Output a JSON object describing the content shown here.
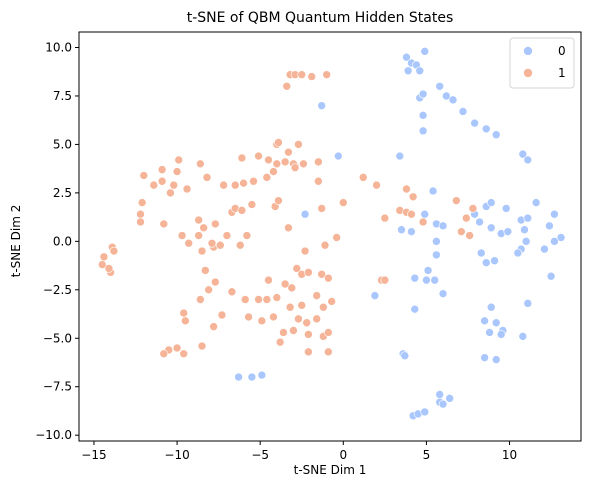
{
  "chart_data": {
    "type": "scatter",
    "title": "t-SNE of QBM Quantum Hidden States",
    "xlabel": "t-SNE Dim 1",
    "ylabel": "t-SNE Dim 2",
    "xlim": [
      -15.9,
      14.3
    ],
    "ylim": [
      -10.3,
      10.8
    ],
    "xticks": [
      -15,
      -10,
      -5,
      0,
      5,
      10
    ],
    "yticks": [
      -10.0,
      -7.5,
      -5.0,
      -2.5,
      0.0,
      2.5,
      5.0,
      7.5,
      10.0
    ],
    "ytick_labels": [
      "−10.0",
      "−7.5",
      "−5.0",
      "−2.5",
      "0.0",
      "2.5",
      "5.0",
      "7.5",
      "10.0"
    ],
    "xtick_labels": [
      "−15",
      "−10",
      "−5",
      "0",
      "5",
      "10"
    ],
    "grid": false,
    "legend_position": "top-right",
    "series": [
      {
        "name": "0",
        "color": "#aac7fd",
        "points": [
          [
            3.8,
            9.5
          ],
          [
            4.9,
            9.8
          ],
          [
            4.1,
            9.2
          ],
          [
            4.4,
            9.1
          ],
          [
            4.6,
            8.8
          ],
          [
            3.9,
            8.8
          ],
          [
            5.8,
            8.0
          ],
          [
            4.6,
            7.4
          ],
          [
            4.8,
            7.6
          ],
          [
            6.2,
            7.5
          ],
          [
            6.6,
            7.3
          ],
          [
            7.2,
            6.7
          ],
          [
            4.8,
            6.5
          ],
          [
            4.8,
            5.7
          ],
          [
            7.9,
            6.1
          ],
          [
            8.6,
            5.8
          ],
          [
            9.2,
            5.5
          ],
          [
            -1.3,
            7.0
          ],
          [
            -0.3,
            4.4
          ],
          [
            3.4,
            4.4
          ],
          [
            10.8,
            4.5
          ],
          [
            11.1,
            4.2
          ],
          [
            5.4,
            2.6
          ],
          [
            -2.3,
            1.4
          ],
          [
            8.6,
            1.8
          ],
          [
            8.9,
            2.0
          ],
          [
            3.5,
            0.6
          ],
          [
            4.9,
            1.4
          ],
          [
            5.6,
            0.9
          ],
          [
            6.0,
            0.8
          ],
          [
            5.6,
            0.0
          ],
          [
            7.9,
            1.4
          ],
          [
            8.2,
            1.0
          ],
          [
            8.9,
            0.7
          ],
          [
            9.5,
            0.4
          ],
          [
            9.8,
            1.7
          ],
          [
            9.9,
            0.5
          ],
          [
            10.7,
            1.1
          ],
          [
            10.9,
            0.6
          ],
          [
            11.1,
            1.2
          ],
          [
            11.6,
            2.0
          ],
          [
            12.7,
            1.4
          ],
          [
            12.4,
            0.8
          ],
          [
            13.1,
            0.2
          ],
          [
            12.7,
            0.0
          ],
          [
            11.0,
            0.0
          ],
          [
            10.7,
            -0.4
          ],
          [
            10.5,
            -0.6
          ],
          [
            12.1,
            -0.4
          ],
          [
            12.5,
            -1.8
          ],
          [
            8.3,
            -0.6
          ],
          [
            8.6,
            -1.1
          ],
          [
            9.1,
            -1.0
          ],
          [
            4.1,
            0.5
          ],
          [
            5.1,
            -1.5
          ],
          [
            5.0,
            -2.0
          ],
          [
            5.5,
            -2.0
          ],
          [
            5.6,
            -0.7
          ],
          [
            6.0,
            -2.7
          ],
          [
            4.3,
            -1.9
          ],
          [
            1.9,
            -2.8
          ],
          [
            4.3,
            -3.5
          ],
          [
            8.9,
            -3.4
          ],
          [
            8.5,
            -4.1
          ],
          [
            9.2,
            -4.2
          ],
          [
            8.8,
            -4.7
          ],
          [
            9.6,
            -4.6
          ],
          [
            9.5,
            -4.8
          ],
          [
            10.8,
            -4.9
          ],
          [
            11.1,
            -3.2
          ],
          [
            8.5,
            -6.0
          ],
          [
            9.2,
            -6.1
          ],
          [
            3.6,
            -5.8
          ],
          [
            3.7,
            -5.9
          ],
          [
            5.8,
            -7.9
          ],
          [
            6.4,
            -8.1
          ],
          [
            5.8,
            -8.3
          ],
          [
            6.0,
            -8.4
          ],
          [
            4.2,
            -9.0
          ],
          [
            4.5,
            -8.9
          ],
          [
            4.9,
            -8.8
          ],
          [
            -6.3,
            -7.0
          ],
          [
            -5.5,
            -7.0
          ],
          [
            -4.9,
            -6.9
          ]
        ]
      },
      {
        "name": "1",
        "color": "#f5b497",
        "points": [
          [
            -3.2,
            8.6
          ],
          [
            -2.9,
            8.6
          ],
          [
            -2.5,
            8.6
          ],
          [
            -1.9,
            8.5
          ],
          [
            -1.0,
            8.6
          ],
          [
            -3.4,
            8.0
          ],
          [
            -4.0,
            5.0
          ],
          [
            -3.9,
            5.1
          ],
          [
            -3.3,
            4.6
          ],
          [
            -3.5,
            4.1
          ],
          [
            -2.7,
            5.0
          ],
          [
            -4.5,
            4.2
          ],
          [
            -6.1,
            4.3
          ],
          [
            -5.1,
            4.4
          ],
          [
            -2.9,
            3.9
          ],
          [
            -2.4,
            4.0
          ],
          [
            -1.5,
            4.1
          ],
          [
            -3.0,
            4.0
          ],
          [
            -4.2,
            3.6
          ],
          [
            -4.6,
            3.3
          ],
          [
            -5.4,
            3.1
          ],
          [
            -6.0,
            3.0
          ],
          [
            -6.5,
            2.9
          ],
          [
            -7.2,
            2.9
          ],
          [
            -9.9,
            4.2
          ],
          [
            -8.6,
            4.0
          ],
          [
            -8.2,
            3.3
          ],
          [
            -10.9,
            3.7
          ],
          [
            -10.0,
            3.6
          ],
          [
            -12.0,
            3.4
          ],
          [
            -10.9,
            3.1
          ],
          [
            -10.2,
            2.9
          ],
          [
            -9.4,
            2.7
          ],
          [
            -10.4,
            2.5
          ],
          [
            -11.4,
            2.9
          ],
          [
            -12.1,
            2.0
          ],
          [
            -12.2,
            1.4
          ],
          [
            -12.2,
            1.0
          ],
          [
            -10.8,
            0.9
          ],
          [
            -8.7,
            1.1
          ],
          [
            -8.4,
            0.7
          ],
          [
            -7.7,
            0.9
          ],
          [
            -6.7,
            1.5
          ],
          [
            -6.5,
            1.7
          ],
          [
            -6.1,
            1.6
          ],
          [
            -5.5,
            1.9
          ],
          [
            -4.1,
            1.8
          ],
          [
            -3.9,
            2.1
          ],
          [
            -1.5,
            3.1
          ],
          [
            -1.3,
            1.7
          ],
          [
            0.0,
            2.0
          ],
          [
            1.2,
            3.3
          ],
          [
            2.0,
            2.9
          ],
          [
            2.5,
            1.2
          ],
          [
            3.8,
            2.7
          ],
          [
            3.4,
            1.6
          ],
          [
            3.8,
            1.5
          ],
          [
            4.1,
            1.4
          ],
          [
            4.2,
            2.3
          ],
          [
            4.8,
            1.0
          ],
          [
            6.8,
            2.1
          ],
          [
            7.4,
            1.2
          ],
          [
            7.1,
            0.5
          ],
          [
            7.6,
            0.3
          ],
          [
            7.8,
            1.7
          ],
          [
            -9.7,
            0.3
          ],
          [
            -9.3,
            -0.1
          ],
          [
            -8.7,
            0.3
          ],
          [
            -8.5,
            -0.5
          ],
          [
            -7.8,
            -0.3
          ],
          [
            -7.4,
            -0.2
          ],
          [
            -7.9,
            -0.1
          ],
          [
            -7.0,
            0.3
          ],
          [
            -6.2,
            -0.2
          ],
          [
            -5.8,
            0.3
          ],
          [
            -3.3,
            0.7
          ],
          [
            -2.3,
            -0.5
          ],
          [
            -1.1,
            -0.2
          ],
          [
            -0.4,
            0.2
          ],
          [
            -8.3,
            -1.5
          ],
          [
            -7.7,
            -2.1
          ],
          [
            -8.1,
            -2.5
          ],
          [
            -6.7,
            -2.6
          ],
          [
            -8.6,
            -3.0
          ],
          [
            -7.3,
            -3.8
          ],
          [
            -7.8,
            -4.4
          ],
          [
            -9.6,
            -3.7
          ],
          [
            -9.5,
            -4.1
          ],
          [
            -8.5,
            -5.4
          ],
          [
            -10.0,
            -5.5
          ],
          [
            -10.5,
            -5.6
          ],
          [
            -10.8,
            -5.8
          ],
          [
            -9.6,
            -5.8
          ],
          [
            -5.9,
            -3.0
          ],
          [
            -5.1,
            -3.0
          ],
          [
            -4.6,
            -3.0
          ],
          [
            -4.5,
            -2.0
          ],
          [
            -4.0,
            -2.9
          ],
          [
            -3.5,
            -2.2
          ],
          [
            -3.1,
            -2.4
          ],
          [
            -2.8,
            -1.4
          ],
          [
            -2.5,
            -1.7
          ],
          [
            -2.1,
            -1.6
          ],
          [
            -1.3,
            -1.7
          ],
          [
            -0.9,
            -1.9
          ],
          [
            -3.2,
            -3.4
          ],
          [
            -2.5,
            -3.3
          ],
          [
            -1.6,
            -2.8
          ],
          [
            -1.2,
            -3.4
          ],
          [
            -0.7,
            -3.1
          ],
          [
            -5.7,
            -3.9
          ],
          [
            -4.9,
            -4.1
          ],
          [
            -4.2,
            -3.9
          ],
          [
            -2.7,
            -4.0
          ],
          [
            -2.2,
            -4.2
          ],
          [
            -1.6,
            -4.0
          ],
          [
            -3.6,
            -4.7
          ],
          [
            -3.0,
            -4.6
          ],
          [
            -1.2,
            -4.9
          ],
          [
            -0.9,
            -4.7
          ],
          [
            -2.1,
            -4.8
          ],
          [
            -3.8,
            -5.2
          ],
          [
            -2.1,
            -5.7
          ],
          [
            -0.9,
            -5.7
          ],
          [
            2.3,
            -2.0
          ],
          [
            2.5,
            -2.0
          ],
          [
            -14.5,
            -1.2
          ],
          [
            -14.4,
            -0.8
          ],
          [
            -14.0,
            -1.6
          ],
          [
            -14.1,
            -1.4
          ],
          [
            -13.9,
            -0.3
          ],
          [
            -13.8,
            -0.5
          ],
          [
            -2.9,
            3.8
          ],
          [
            -4.0,
            4.0
          ]
        ]
      }
    ]
  }
}
